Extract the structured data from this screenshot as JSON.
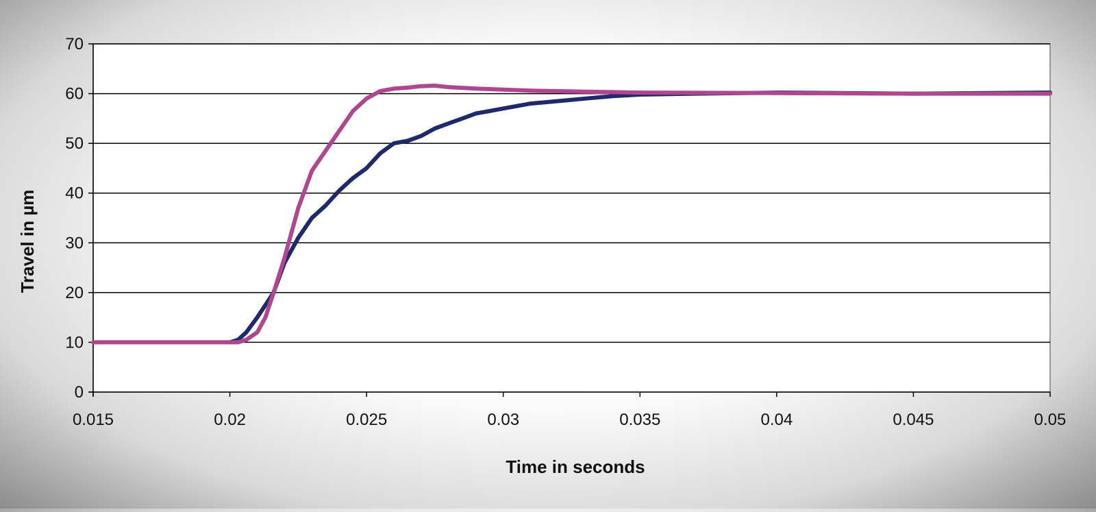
{
  "chart_data": {
    "type": "line",
    "title": "",
    "xlabel": "Time in seconds",
    "ylabel": "Travel in µm",
    "xlim": [
      0.015,
      0.05
    ],
    "ylim": [
      0,
      70
    ],
    "x_ticks": [
      0.015,
      0.02,
      0.025,
      0.03,
      0.035,
      0.04,
      0.045,
      0.05
    ],
    "x_tick_labels": [
      "0.015",
      "0.02",
      "0.025",
      "0.03",
      "0.035",
      "0.04",
      "0.045",
      "0.05"
    ],
    "y_ticks": [
      0,
      10,
      20,
      30,
      40,
      50,
      60,
      70
    ],
    "y_tick_labels": [
      "0",
      "10",
      "20",
      "30",
      "40",
      "50",
      "60",
      "70"
    ],
    "grid": "horizontal",
    "legend": "none",
    "series": [
      {
        "color": "#1f2a6b",
        "x": [
          0.02,
          0.0203,
          0.0206,
          0.021,
          0.0213,
          0.0216,
          0.022,
          0.0225,
          0.023,
          0.0235,
          0.024,
          0.0245,
          0.025,
          0.0255,
          0.026,
          0.0265,
          0.027,
          0.0275,
          0.028,
          0.0285,
          0.029,
          0.0295,
          0.03,
          0.031,
          0.032,
          0.033,
          0.034,
          0.035,
          0.037,
          0.04,
          0.045,
          0.05
        ],
        "y": [
          10,
          10.5,
          12,
          15,
          17.5,
          20,
          26,
          31,
          35,
          37.5,
          40.5,
          43,
          45,
          48,
          50,
          50.5,
          51.5,
          53,
          54,
          55,
          56,
          56.5,
          57,
          58,
          58.5,
          59,
          59.5,
          59.8,
          60,
          60.2,
          60,
          60.2
        ]
      },
      {
        "color": "#b0468f",
        "x": [
          0.015,
          0.0203,
          0.0206,
          0.021,
          0.0213,
          0.0216,
          0.022,
          0.0225,
          0.023,
          0.0235,
          0.024,
          0.0245,
          0.025,
          0.0255,
          0.026,
          0.0265,
          0.027,
          0.0275,
          0.028,
          0.029,
          0.03,
          0.031,
          0.033,
          0.035,
          0.04,
          0.045,
          0.05
        ],
        "y": [
          10,
          10,
          10.5,
          12,
          15,
          20,
          27,
          37,
          44.5,
          48.5,
          52.5,
          56.5,
          59,
          60.5,
          61,
          61.2,
          61.5,
          61.6,
          61.3,
          61,
          60.8,
          60.6,
          60.4,
          60.2,
          60.1,
          60,
          60
        ]
      }
    ]
  }
}
